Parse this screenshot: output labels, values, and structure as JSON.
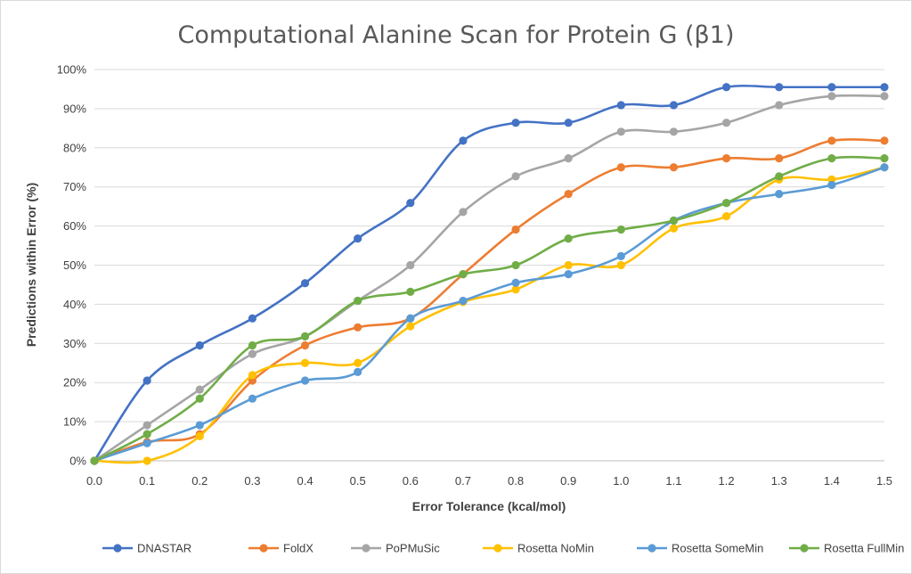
{
  "chart_data": {
    "type": "line",
    "title": "Computational Alanine Scan for Protein G (β1)",
    "xlabel": "Error Tolerance (kcal/mol)",
    "ylabel": "Predictions within Error (%)",
    "x": [
      0.0,
      0.1,
      0.2,
      0.3,
      0.4,
      0.5,
      0.6,
      0.7,
      0.8,
      0.9,
      1.0,
      1.1,
      1.2,
      1.3,
      1.4,
      1.5
    ],
    "x_tick_labels": [
      "0.0",
      "0.1",
      "0.2",
      "0.3",
      "0.4",
      "0.5",
      "0.6",
      "0.7",
      "0.8",
      "0.9",
      "1.0",
      "1.1",
      "1.2",
      "1.3",
      "1.4",
      "1.5"
    ],
    "y_ticks": [
      0,
      10,
      20,
      30,
      40,
      50,
      60,
      70,
      80,
      90,
      100
    ],
    "y_tick_labels": [
      "0%",
      "10%",
      "20%",
      "30%",
      "40%",
      "50%",
      "60%",
      "70%",
      "80%",
      "90%",
      "100%"
    ],
    "xlim": [
      0,
      1.5
    ],
    "ylim": [
      0,
      100
    ],
    "grid": "horizontal",
    "legend_position": "bottom",
    "smooth": true,
    "series": [
      {
        "name": "DNASTAR",
        "color": "#4472c4",
        "values": [
          0,
          20.5,
          29.5,
          36.4,
          45.4,
          56.8,
          65.9,
          81.8,
          86.4,
          86.4,
          90.9,
          90.9,
          95.5,
          95.5,
          95.5,
          95.5
        ]
      },
      {
        "name": "FoldX",
        "color": "#ed7d31",
        "values": [
          0,
          4.8,
          6.8,
          20.5,
          29.5,
          34.1,
          36.4,
          47.7,
          59.1,
          68.2,
          75.0,
          75.0,
          77.3,
          77.3,
          81.8,
          81.8
        ]
      },
      {
        "name": "PoPMuSic",
        "color": "#a5a5a5",
        "values": [
          0,
          9.1,
          18.2,
          27.3,
          31.8,
          40.9,
          50.0,
          63.6,
          72.7,
          77.3,
          84.1,
          84.1,
          86.4,
          90.9,
          93.2,
          93.2
        ]
      },
      {
        "name": "Rosetta NoMin",
        "color": "#ffc000",
        "values": [
          0,
          0,
          6.3,
          21.9,
          25.0,
          25.0,
          34.4,
          40.6,
          43.8,
          50.0,
          50.0,
          59.4,
          62.5,
          71.9,
          71.9,
          75.0
        ]
      },
      {
        "name": "Rosetta SomeMin",
        "color": "#5b9bd5",
        "values": [
          0,
          4.5,
          9.1,
          15.9,
          20.5,
          22.7,
          36.4,
          40.9,
          45.5,
          47.7,
          52.3,
          61.4,
          65.9,
          68.2,
          70.5,
          75.0
        ]
      },
      {
        "name": "Rosetta FullMin",
        "color": "#70ad47",
        "values": [
          0,
          6.8,
          15.9,
          29.5,
          31.8,
          40.9,
          43.2,
          47.7,
          50.0,
          56.8,
          59.1,
          61.4,
          65.9,
          72.7,
          77.3,
          77.3
        ]
      }
    ]
  }
}
